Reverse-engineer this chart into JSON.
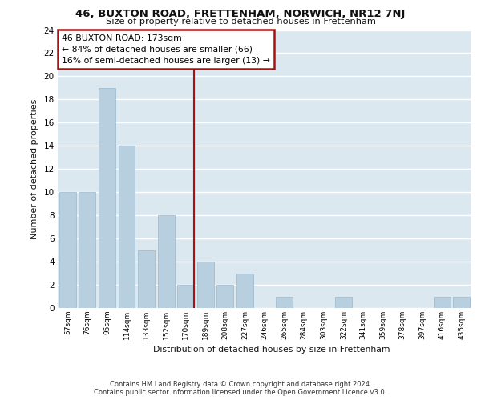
{
  "title1": "46, BUXTON ROAD, FRETTENHAM, NORWICH, NR12 7NJ",
  "title2": "Size of property relative to detached houses in Frettenham",
  "xlabel": "Distribution of detached houses by size in Frettenham",
  "ylabel": "Number of detached properties",
  "categories": [
    "57sqm",
    "76sqm",
    "95sqm",
    "114sqm",
    "133sqm",
    "152sqm",
    "170sqm",
    "189sqm",
    "208sqm",
    "227sqm",
    "246sqm",
    "265sqm",
    "284sqm",
    "303sqm",
    "322sqm",
    "341sqm",
    "359sqm",
    "378sqm",
    "397sqm",
    "416sqm",
    "435sqm"
  ],
  "values": [
    10,
    10,
    19,
    14,
    5,
    8,
    2,
    4,
    2,
    3,
    0,
    1,
    0,
    0,
    1,
    0,
    0,
    0,
    0,
    1,
    1
  ],
  "bar_color": "#b8cfe0",
  "bar_edge_color": "#9ab8cc",
  "vline_index": 6,
  "vline_color": "#aa1111",
  "annotation_text": "46 BUXTON ROAD: 173sqm\n← 84% of detached houses are smaller (66)\n16% of semi-detached houses are larger (13) →",
  "annotation_box_edgecolor": "#aa1111",
  "ylim": [
    0,
    24
  ],
  "yticks": [
    0,
    2,
    4,
    6,
    8,
    10,
    12,
    14,
    16,
    18,
    20,
    22,
    24
  ],
  "footnote1": "Contains HM Land Registry data © Crown copyright and database right 2024.",
  "footnote2": "Contains public sector information licensed under the Open Government Licence v3.0.",
  "background_color": "#dce8f0",
  "grid_color": "#ffffff",
  "fig_width": 6.0,
  "fig_height": 5.0
}
